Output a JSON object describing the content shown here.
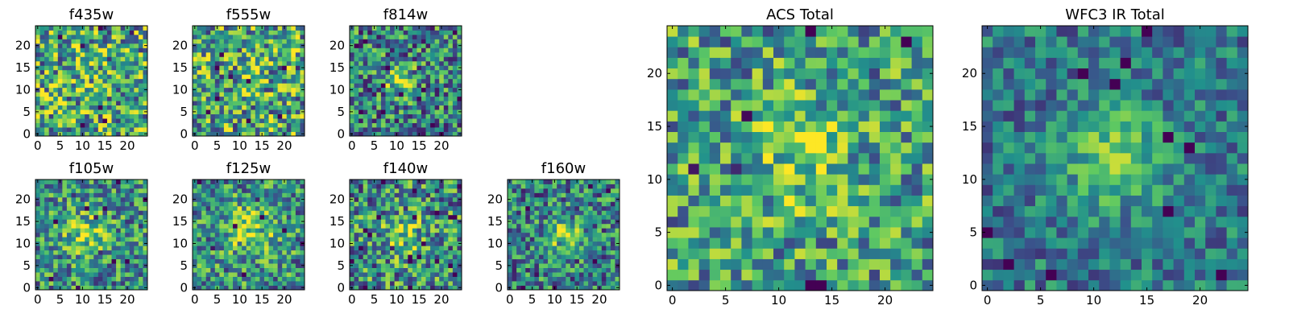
{
  "figure": {
    "description_free": true
  },
  "colormap": [
    "#440154",
    "#3b528b",
    "#21918c",
    "#5ec962",
    "#fde725"
  ],
  "chart_data": [
    {
      "type": "heatmap",
      "title": "f435w",
      "grid_size": 25,
      "xticks": [
        0,
        5,
        10,
        15,
        20
      ],
      "yticks": [
        0,
        5,
        10,
        15,
        20
      ],
      "seed": 11,
      "peak": [
        12,
        12
      ],
      "peak_strength": 0.05,
      "peak_sigma": 3,
      "noise": 0.55,
      "base": 0.6
    },
    {
      "type": "heatmap",
      "title": "f555w",
      "grid_size": 25,
      "xticks": [
        0,
        5,
        10,
        15,
        20
      ],
      "yticks": [
        0,
        5,
        10,
        15,
        20
      ],
      "seed": 23,
      "peak": [
        12,
        12
      ],
      "peak_strength": 0.05,
      "peak_sigma": 3,
      "noise": 0.55,
      "base": 0.6
    },
    {
      "type": "heatmap",
      "title": "f814w",
      "grid_size": 25,
      "xticks": [
        0,
        5,
        10,
        15,
        20
      ],
      "yticks": [
        0,
        5,
        10,
        15,
        20
      ],
      "seed": 37,
      "peak": [
        11,
        12
      ],
      "peak_strength": 0.45,
      "peak_sigma": 2.2,
      "noise": 0.5,
      "base": 0.45
    },
    {
      "type": "heatmap",
      "title": "f105w",
      "grid_size": 25,
      "xticks": [
        0,
        5,
        10,
        15,
        20
      ],
      "yticks": [
        0,
        5,
        10,
        15,
        20
      ],
      "seed": 41,
      "peak": [
        11,
        12
      ],
      "peak_strength": 0.3,
      "peak_sigma": 3.5,
      "noise": 0.45,
      "base": 0.5
    },
    {
      "type": "heatmap",
      "title": "f125w",
      "grid_size": 25,
      "xticks": [
        0,
        5,
        10,
        15,
        20
      ],
      "yticks": [
        0,
        5,
        10,
        15,
        20
      ],
      "seed": 53,
      "peak": [
        13,
        13
      ],
      "peak_strength": 0.35,
      "peak_sigma": 4,
      "noise": 0.45,
      "base": 0.5
    },
    {
      "type": "heatmap",
      "title": "f140w",
      "grid_size": 25,
      "xticks": [
        0,
        5,
        10,
        15,
        20
      ],
      "yticks": [
        0,
        5,
        10,
        15,
        20
      ],
      "seed": 67,
      "peak": [
        11,
        12
      ],
      "peak_strength": 0.3,
      "peak_sigma": 3,
      "noise": 0.5,
      "base": 0.5
    },
    {
      "type": "heatmap",
      "title": "f160w",
      "grid_size": 25,
      "xticks": [
        0,
        5,
        10,
        15,
        20
      ],
      "yticks": [
        0,
        5,
        10,
        15,
        20
      ],
      "seed": 79,
      "peak": [
        12,
        12
      ],
      "peak_strength": 0.45,
      "peak_sigma": 2.5,
      "noise": 0.45,
      "base": 0.45
    },
    {
      "type": "heatmap",
      "title": "ACS Total",
      "grid_size": 25,
      "xticks": [
        0,
        5,
        10,
        15,
        20
      ],
      "yticks": [
        0,
        5,
        10,
        15,
        20
      ],
      "seed": 97,
      "peak": [
        12,
        12
      ],
      "peak_strength": 0.25,
      "peak_sigma": 3.5,
      "noise": 0.45,
      "base": 0.55
    },
    {
      "type": "heatmap",
      "title": "WFC3 IR Total",
      "grid_size": 25,
      "xticks": [
        0,
        5,
        10,
        15,
        20
      ],
      "yticks": [
        0,
        5,
        10,
        15,
        20
      ],
      "seed": 113,
      "peak": [
        12,
        12
      ],
      "peak_strength": 0.45,
      "peak_sigma": 3,
      "noise": 0.3,
      "base": 0.4
    }
  ]
}
